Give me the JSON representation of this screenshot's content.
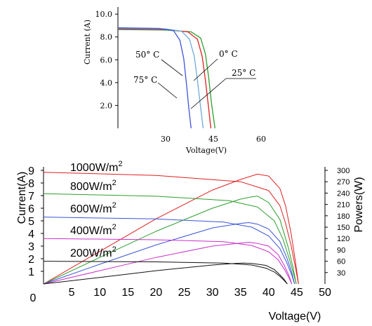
{
  "chart_data": [
    {
      "type": "line",
      "ylabel": "Current (A)",
      "xlabel": "Voltage(V)",
      "x_ticks": [
        "30",
        "45",
        "60"
      ],
      "y_ticks": [
        "2.0",
        "4.0",
        "6.0",
        "8.0",
        "10.0"
      ],
      "xlim": [
        15,
        60
      ],
      "ylim": [
        0,
        10.5
      ],
      "grid": false,
      "series": [
        {
          "name": "0° C",
          "color": "#2e9e2e",
          "x": [
            15,
            30,
            38,
            41,
            42.5,
            43.5,
            44.5,
            45.5
          ],
          "y": [
            8.65,
            8.6,
            8.45,
            7.9,
            6.5,
            4.5,
            2.0,
            0
          ]
        },
        {
          "name": "25° C",
          "color": "#e02020",
          "x": [
            15,
            30,
            37,
            40,
            41.5,
            42.5,
            43.5,
            44.2
          ],
          "y": [
            8.7,
            8.65,
            8.45,
            7.8,
            6.3,
            4.2,
            1.8,
            0
          ]
        },
        {
          "name": "50° C",
          "color": "#6fa8dc",
          "x": [
            15,
            30,
            35,
            37.5,
            39,
            40,
            41,
            41.8
          ],
          "y": [
            8.75,
            8.7,
            8.5,
            7.8,
            6.3,
            4.2,
            1.8,
            0
          ]
        },
        {
          "name": "75° C",
          "color": "#3a55d8",
          "x": [
            15,
            28,
            32.5,
            34.5,
            35.7,
            36.5,
            37.3,
            38
          ],
          "y": [
            8.8,
            8.75,
            8.55,
            7.7,
            6.1,
            4.0,
            1.7,
            0
          ]
        }
      ],
      "annotations": [
        "0° C",
        "25° C",
        "50° C",
        "75° C"
      ]
    },
    {
      "type": "line",
      "ylabel": "Current(A)",
      "ylabel_right": "Powers(W)",
      "xlabel": "Voltage(V)",
      "x_ticks": [
        "0",
        "5",
        "10",
        "15",
        "20",
        "25",
        "30",
        "35",
        "40",
        "45",
        "50"
      ],
      "y_ticks": [
        "1",
        "2",
        "3",
        "4",
        "5",
        "6",
        "7",
        "8",
        "9"
      ],
      "y_ticks_right": [
        "30",
        "60",
        "90",
        "120",
        "150",
        "180",
        "210",
        "240",
        "270",
        "300"
      ],
      "xlim": [
        0,
        50
      ],
      "ylim": [
        0,
        9
      ],
      "ylim_right": [
        0,
        300
      ],
      "grid": false,
      "series": [
        {
          "name": "1000W/m2",
          "kind": "current",
          "color": "#e02020",
          "x": [
            0,
            20,
            35,
            40,
            42,
            43,
            44,
            44.8,
            45.3
          ],
          "y": [
            8.85,
            8.6,
            8.1,
            7.4,
            6.2,
            4.8,
            3.0,
            1.2,
            0
          ]
        },
        {
          "name": "1000W/m2",
          "kind": "power",
          "color": "#e02020",
          "x": [
            0,
            10,
            20,
            30,
            35,
            38,
            40,
            42,
            43,
            44,
            44.8,
            45.3
          ],
          "y": [
            0,
            86,
            172,
            248,
            276,
            290,
            285,
            252,
            206,
            132,
            54,
            0
          ]
        },
        {
          "name": "800W/m2",
          "kind": "current",
          "color": "#2e9e2e",
          "x": [
            0,
            20,
            33,
            38,
            41,
            42.5,
            43.5,
            44.3,
            44.9
          ],
          "y": [
            7.15,
            6.95,
            6.6,
            6.1,
            5.0,
            3.6,
            2.2,
            1.0,
            0
          ]
        },
        {
          "name": "800W/m2",
          "kind": "power",
          "color": "#2e9e2e",
          "x": [
            0,
            10,
            20,
            30,
            35,
            37,
            38,
            40,
            42,
            43.5,
            44.3,
            44.9
          ],
          "y": [
            0,
            70,
            139,
            200,
            224,
            230,
            232,
            215,
            170,
            95,
            45,
            0
          ]
        },
        {
          "name": "600W/m2",
          "kind": "current",
          "color": "#3a55d8",
          "x": [
            0,
            20,
            32,
            37,
            40,
            42,
            43.2,
            44.1,
            44.6
          ],
          "y": [
            5.3,
            5.15,
            4.9,
            4.5,
            3.8,
            2.8,
            1.7,
            0.7,
            0
          ]
        },
        {
          "name": "600W/m2",
          "kind": "power",
          "color": "#3a55d8",
          "x": [
            0,
            10,
            20,
            30,
            35,
            36.5,
            38,
            40,
            42,
            43.2,
            44.1,
            44.6
          ],
          "y": [
            0,
            52,
            103,
            148,
            160,
            162,
            158,
            145,
            112,
            70,
            30,
            0
          ]
        },
        {
          "name": "400W/m2",
          "kind": "current",
          "color": "#c830c8",
          "x": [
            0,
            20,
            32,
            37,
            40,
            41.7,
            42.8,
            43.6,
            44.1
          ],
          "y": [
            3.6,
            3.5,
            3.35,
            3.05,
            2.55,
            1.9,
            1.15,
            0.5,
            0
          ]
        },
        {
          "name": "400W/m2",
          "kind": "power",
          "color": "#c830c8",
          "x": [
            0,
            10,
            20,
            30,
            35,
            36.5,
            38,
            40,
            41.7,
            42.8,
            43.6,
            44.1
          ],
          "y": [
            0,
            35,
            70,
            100,
            108,
            110,
            107,
            100,
            77,
            48,
            22,
            0
          ]
        },
        {
          "name": "200W/m2",
          "kind": "current",
          "color": "#111111",
          "x": [
            0,
            20,
            32,
            37,
            39.5,
            41,
            42,
            42.8,
            43.3
          ],
          "y": [
            1.8,
            1.75,
            1.65,
            1.5,
            1.25,
            0.95,
            0.6,
            0.25,
            0
          ]
        },
        {
          "name": "200W/m2",
          "kind": "power",
          "color": "#111111",
          "x": [
            0,
            10,
            20,
            30,
            34,
            35.5,
            37,
            39.5,
            41,
            42,
            42.8,
            43.3
          ],
          "y": [
            0,
            17,
            35,
            50,
            54,
            55,
            54,
            49,
            38,
            24,
            11,
            0
          ]
        }
      ],
      "labels": [
        {
          "text": "1000W/m",
          "sup": "2"
        },
        {
          "text": "800W/m",
          "sup": "2"
        },
        {
          "text": "600W/m",
          "sup": "2"
        },
        {
          "text": "400W/m",
          "sup": "2"
        },
        {
          "text": "200W/m",
          "sup": "2"
        }
      ]
    }
  ]
}
